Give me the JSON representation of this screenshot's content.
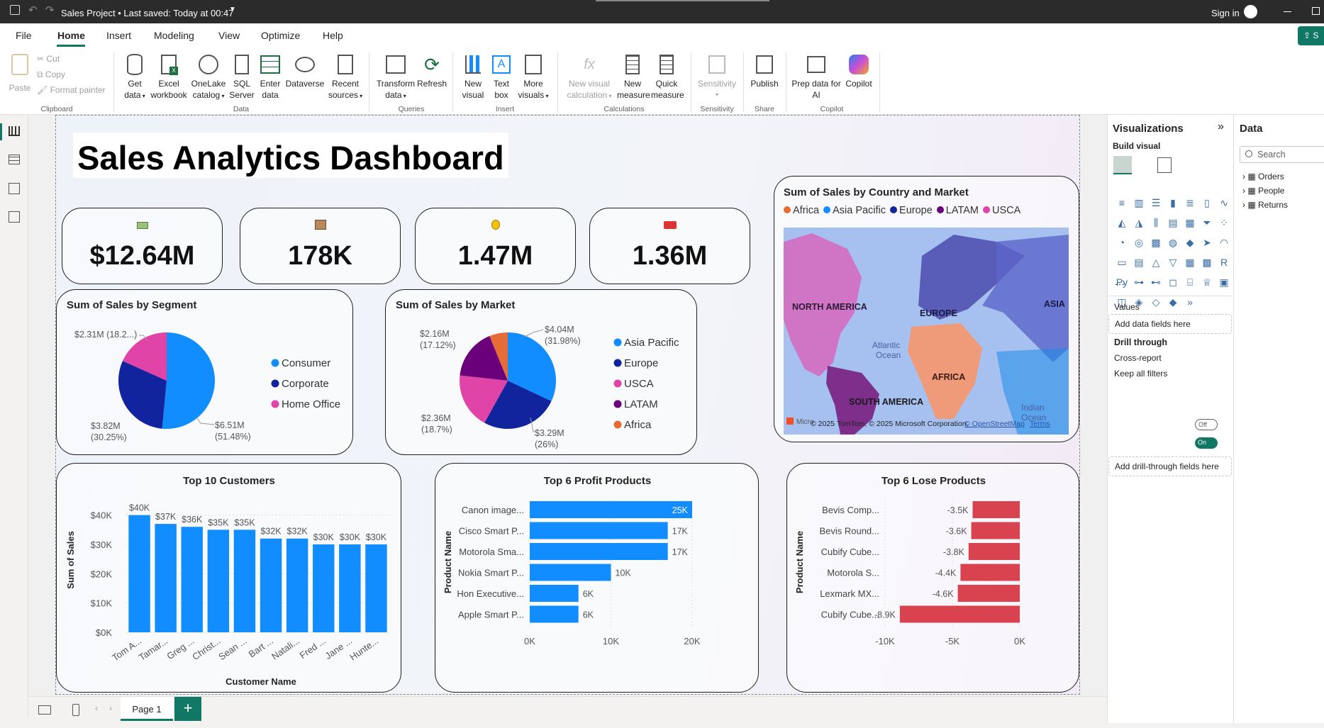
{
  "titlebar": {
    "title": "Sales Project • Last saved: Today at 00:47",
    "signin": "Sign in"
  },
  "menu": [
    "File",
    "Home",
    "Insert",
    "Modeling",
    "View",
    "Optimize",
    "Help"
  ],
  "share_label": "S",
  "ribbon": {
    "clipboard": {
      "paste": "Paste",
      "cut": "Cut",
      "copy": "Copy",
      "format_painter": "Format painter",
      "group": "Clipboard"
    },
    "data": {
      "get_data": [
        "Get",
        "data"
      ],
      "excel": [
        "Excel",
        "workbook"
      ],
      "onelake": [
        "OneLake",
        "catalog"
      ],
      "sql": [
        "SQL",
        "Server"
      ],
      "enter": [
        "Enter",
        "data"
      ],
      "dataverse": "Dataverse",
      "recent": [
        "Recent",
        "sources"
      ],
      "group": "Data"
    },
    "queries": {
      "transform": [
        "Transform",
        "data"
      ],
      "refresh": "Refresh",
      "group": "Queries"
    },
    "insert": {
      "new_visual": [
        "New",
        "visual"
      ],
      "text_box": [
        "Text",
        "box"
      ],
      "more": [
        "More",
        "visuals"
      ],
      "group": "Insert"
    },
    "calculations": {
      "new_visual_calc": [
        "New visual",
        "calculation"
      ],
      "new_measure": [
        "New",
        "measure"
      ],
      "quick_measure": [
        "Quick",
        "measure"
      ],
      "group": "Calculations"
    },
    "sensitivity": {
      "label": "Sensitivity",
      "group": "Sensitivity"
    },
    "share": {
      "publish": "Publish",
      "group": "Share"
    },
    "copilot": {
      "prep": [
        "Prep data for",
        "AI"
      ],
      "copilot": "Copilot",
      "group": "Copilot"
    }
  },
  "report": {
    "title": "Sales Analytics Dashboard",
    "kpis": [
      {
        "icon": "money-icon",
        "value": "$12.64M"
      },
      {
        "icon": "box-icon",
        "value": "178K"
      },
      {
        "icon": "medal-icon",
        "value": "1.47M"
      },
      {
        "icon": "truck-icon",
        "value": "1.36M"
      }
    ],
    "segment_title": "Sum of Sales by Segment",
    "market_title": "Sum of Sales by Market",
    "map": {
      "title": "Sum of Sales by Country and Market",
      "legend": [
        "Africa",
        "Asia Pacific",
        "Europe",
        "LATAM",
        "USCA"
      ],
      "regions": [
        "NORTH AMERICA",
        "EUROPE",
        "ASIA",
        "AFRICA",
        "SOUTH AMERICA"
      ],
      "ocean1": [
        "Atlantic",
        "Ocean"
      ],
      "ocean2": [
        "Indian",
        "Ocean"
      ],
      "credit": "© 2025 TomTom, © 2025 Microsoft Corporation,",
      "osm": "© OpenStreetMap",
      "terms": "Terms",
      "ms": "Micro"
    },
    "customers_title": "Top 10 Customers",
    "profit_title": "Top 6 Profit Products",
    "loss_title": "Top 6 Lose Products"
  },
  "colors": {
    "blue": "#118dff",
    "navy": "#12239e",
    "pink": "#e044a7",
    "purple": "#6b007b",
    "orange": "#e66c37",
    "red": "#d9434f"
  },
  "chart_data": [
    {
      "type": "pie",
      "title": "Sum of Sales by Segment",
      "categories": [
        "Consumer",
        "Corporate",
        "Home Office"
      ],
      "values": [
        6.51,
        3.82,
        2.31
      ],
      "unit": "$M",
      "labels": [
        "$6.51M (51.48%)",
        "$3.82M (30.25%)",
        "$2.31M (18.2...)"
      ],
      "legend": [
        "Consumer",
        "Corporate",
        "Home Office"
      ]
    },
    {
      "type": "pie",
      "title": "Sum of Sales by Market",
      "categories": [
        "Asia Pacific",
        "Europe",
        "USCA",
        "LATAM",
        "Africa"
      ],
      "values": [
        4.04,
        3.29,
        2.36,
        2.16,
        0.78
      ],
      "unit": "$M",
      "labels": [
        "$4.04M (31.98%)",
        "$3.29M (26%)",
        "$2.36M (18.7%)",
        "$2.16M (17.12%)",
        ""
      ],
      "legend": [
        "Asia Pacific",
        "Europe",
        "USCA",
        "LATAM",
        "Africa"
      ]
    },
    {
      "type": "bar",
      "title": "Top 10 Customers",
      "categories": [
        "Tom A...",
        "Tamar...",
        "Greg ...",
        "Christ...",
        "Sean ...",
        "Bart ...",
        "Natali...",
        "Fred ...",
        "Jane ...",
        "Hunte..."
      ],
      "values": [
        40,
        37,
        36,
        35,
        35,
        32,
        32,
        30,
        30,
        30
      ],
      "data_labels": [
        "$40K",
        "$37K",
        "$36K",
        "$35K",
        "$35K",
        "$32K",
        "$32K",
        "$30K",
        "$30K",
        "$30K"
      ],
      "yticks": [
        "$0K",
        "$10K",
        "$20K",
        "$30K",
        "$40K"
      ],
      "ylim": [
        0,
        45
      ],
      "xlabel": "Customer Name",
      "ylabel": "Sum of Sales"
    },
    {
      "type": "bar",
      "orientation": "horizontal",
      "title": "Top 6 Profit Products",
      "categories": [
        "Canon image...",
        "Cisco Smart P...",
        "Motorola Sma...",
        "Nokia Smart P...",
        "Hon Executive...",
        "Apple Smart P..."
      ],
      "values": [
        25,
        17,
        17,
        10,
        6,
        6
      ],
      "data_labels": [
        "25K",
        "17K",
        "17K",
        "10K",
        "6K",
        "6K"
      ],
      "xticks": [
        "0K",
        "10K",
        "20K"
      ],
      "xlim": [
        0,
        20
      ],
      "ylabel": "Product Name"
    },
    {
      "type": "bar",
      "orientation": "horizontal",
      "title": "Top 6 Lose Products",
      "categories": [
        "Bevis Comp...",
        "Bevis Round...",
        "Cubify Cube...",
        "Motorola S...",
        "Lexmark MX...",
        "Cubify Cube..."
      ],
      "values": [
        -3.5,
        -3.6,
        -3.8,
        -4.4,
        -4.6,
        -8.9
      ],
      "data_labels": [
        "-3.5K",
        "-3.6K",
        "-3.8K",
        "-4.4K",
        "-4.6K",
        "-8.9K"
      ],
      "xticks": [
        "-10K",
        "-5K",
        "0K"
      ],
      "xlim": [
        -10,
        0
      ],
      "ylabel": "Product Name"
    }
  ],
  "viz": {
    "title": "Visualizations",
    "build": "Build visual",
    "values": "Values",
    "add_data": "Add data fields here",
    "drill": "Drill through",
    "cross": "Cross-report",
    "cross_state": "Off",
    "keep": "Keep all filters",
    "keep_state": "On",
    "add_drill": "Add drill-through fields here",
    "more": "···"
  },
  "datapane": {
    "title": "Data",
    "search": "Search",
    "tables": [
      "Orders",
      "People",
      "Returns"
    ]
  },
  "page_tab": "Page 1",
  "add_page": "+"
}
